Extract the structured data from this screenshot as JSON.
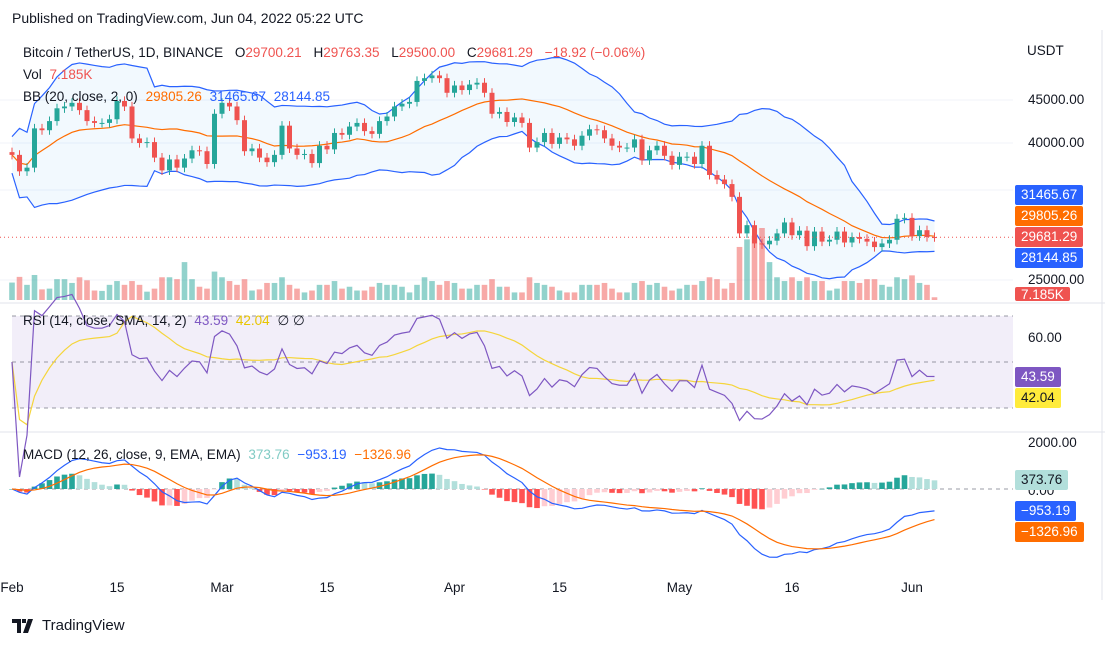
{
  "header": {
    "published": "Published on TradingView.com, Jun 04, 2022 05:22 UTC"
  },
  "legend": {
    "symbol": "Bitcoin / TetherUS, 1D, BINANCE",
    "o_label": "O",
    "o": "29700.21",
    "h_label": "H",
    "h": "29763.35",
    "l_label": "L",
    "l": "29500.00",
    "c_label": "C",
    "c": "29681.29",
    "change": "−18.92 (−0.06%)",
    "vol_label": "Vol",
    "vol": "7.185K",
    "bb_label": "BB (20, close, 2, 0)",
    "bb_basis": "29805.26",
    "bb_upper": "31465.67",
    "bb_lower": "28144.85",
    "rsi_label": "RSI (14, close, SMA, 14, 2)",
    "rsi": "43.59",
    "rsi_ma": "42.04",
    "rsi_extra": "∅ ∅",
    "macd_label": "MACD (12, 26, close, 9, EMA, EMA)",
    "macd_hist": "373.76",
    "macd": "−953.19",
    "macd_signal": "−1326.96"
  },
  "axis": {
    "currency": "USDT",
    "price_ticks": [
      "45000.00",
      "40000.00",
      "25000.00"
    ],
    "rsi_ticks": [
      "60.00"
    ],
    "macd_ticks": [
      "2000.00",
      "0.00"
    ],
    "x_ticks": [
      "Feb",
      "15",
      "Mar",
      "15",
      "Apr",
      "15",
      "May",
      "16",
      "Jun"
    ],
    "boxes": {
      "bb_upper": "31465.67",
      "bb_basis": "29805.26",
      "last": "29681.29",
      "bb_lower": "28144.85",
      "vol": "7.185K",
      "rsi": "43.59",
      "rsi_ma": "42.04",
      "macd_hist": "373.76",
      "macd": "−953.19",
      "macd_signal": "−1326.96"
    }
  },
  "colors": {
    "up": "#26a69a",
    "down": "#ef5350",
    "bb_band": "#2962ff",
    "bb_basis": "#ff6d00",
    "rsi": "#7e57c2",
    "rsi_ma": "#f5d53b",
    "macd": "#2962ff",
    "signal": "#ff6d00"
  },
  "footer": {
    "brand": "TradingView"
  },
  "chart_data": {
    "type": "candlestick",
    "symbol": "BTCUSDT",
    "interval": "1D",
    "start_date": "2022-02-01",
    "end_date": "2022-06-04",
    "price_unit": "thousand USDT",
    "closes": [
      38.7,
      36.9,
      37.3,
      41.6,
      41.4,
      42.4,
      43.8,
      44.0,
      44.4,
      43.6,
      42.4,
      42.2,
      42.2,
      42.6,
      44.6,
      44.0,
      40.5,
      40.0,
      40.1,
      38.4,
      37.0,
      38.2,
      37.3,
      38.3,
      39.2,
      39.1,
      37.7,
      43.2,
      44.4,
      44.0,
      42.5,
      39.1,
      39.4,
      38.4,
      37.9,
      38.7,
      41.9,
      39.4,
      38.7,
      38.8,
      37.8,
      39.7,
      39.3,
      41.1,
      40.9,
      41.8,
      42.2,
      41.3,
      41.0,
      42.4,
      42.9,
      44.0,
      44.3,
      44.5,
      46.8,
      47.1,
      47.4,
      47.1,
      45.5,
      46.3,
      45.8,
      46.4,
      46.6,
      45.5,
      43.2,
      43.4,
      42.3,
      42.8,
      42.2,
      39.5,
      40.1,
      41.1,
      39.9,
      40.6,
      40.4,
      39.7,
      40.8,
      41.5,
      41.4,
      40.5,
      39.7,
      39.5,
      39.5,
      40.4,
      38.1,
      39.2,
      39.7,
      38.6,
      37.6,
      38.5,
      38.5,
      37.7,
      39.7,
      36.5,
      36.0,
      35.5,
      34.1,
      30.1,
      31.0,
      29.0,
      28.9,
      29.3,
      30.1,
      31.3,
      29.9,
      30.4,
      28.7,
      30.3,
      29.2,
      29.4,
      30.3,
      29.1,
      29.7,
      29.5,
      29.2,
      28.6,
      29.0,
      29.4,
      31.7,
      31.8,
      29.8,
      30.45,
      29.7,
      29.68
    ],
    "volume_k": [
      46,
      61,
      40,
      66,
      28,
      30,
      55,
      55,
      45,
      60,
      52,
      25,
      24,
      40,
      50,
      40,
      50,
      40,
      22,
      30,
      60,
      60,
      55,
      100,
      55,
      35,
      30,
      75,
      60,
      50,
      40,
      55,
      25,
      28,
      45,
      45,
      60,
      40,
      30,
      20,
      25,
      40,
      40,
      50,
      30,
      35,
      25,
      25,
      35,
      45,
      40,
      40,
      35,
      20,
      40,
      60,
      50,
      40,
      50,
      45,
      30,
      30,
      40,
      40,
      55,
      35,
      35,
      20,
      20,
      60,
      45,
      40,
      35,
      25,
      20,
      20,
      40,
      40,
      40,
      45,
      30,
      20,
      20,
      45,
      50,
      40,
      45,
      35,
      25,
      30,
      40,
      40,
      50,
      60,
      55,
      30,
      45,
      140,
      160,
      170,
      190,
      100,
      60,
      50,
      60,
      50,
      60,
      50,
      50,
      25,
      30,
      50,
      50,
      45,
      55,
      55,
      40,
      35,
      60,
      55,
      65,
      45,
      40,
      7.185
    ],
    "price_range": [
      24,
      49
    ],
    "rsi_levels": [
      70,
      50,
      30
    ],
    "indicators": [
      "Bollinger Bands (20, 2)",
      "RSI (14) with SMA 14",
      "MACD (12, 26, 9)"
    ]
  }
}
